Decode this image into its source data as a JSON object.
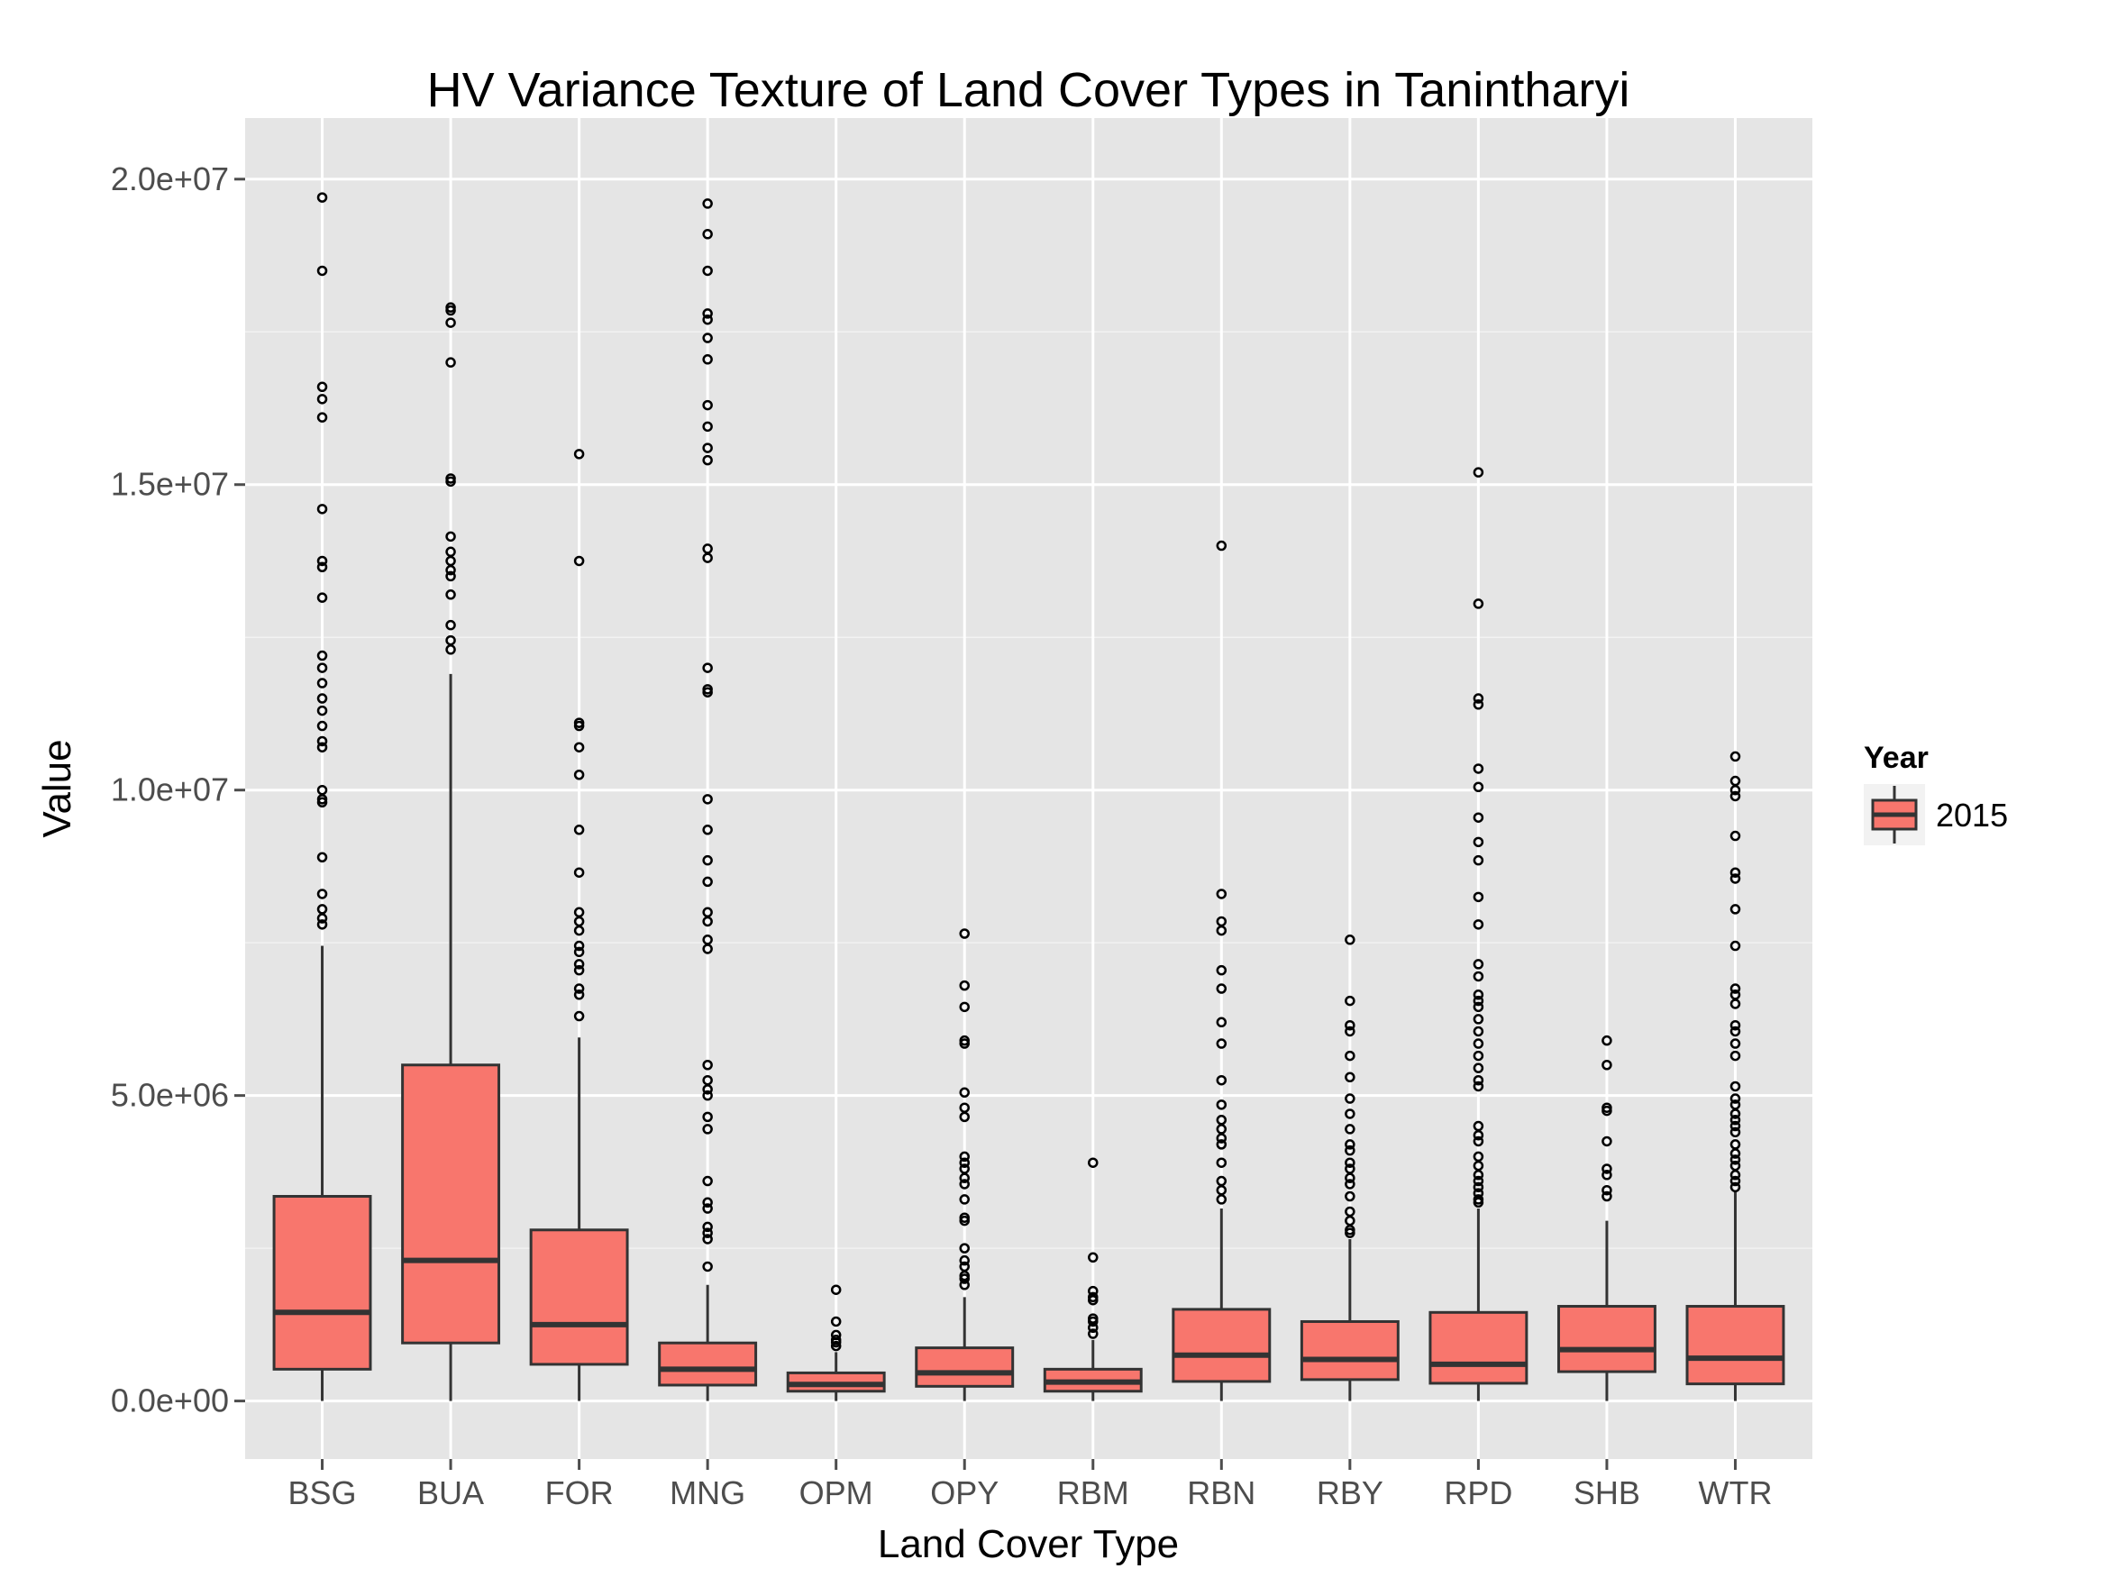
{
  "chart_data": {
    "type": "box",
    "title": "HV Variance Texture of Land Cover Types in Tanintharyi",
    "xlabel": "Land Cover Type",
    "ylabel": "Value",
    "ylim": [
      -950000,
      21000000
    ],
    "yticks": [
      0,
      5000000,
      10000000,
      15000000,
      20000000
    ],
    "ytick_labels": [
      "0.0e+00",
      "5.0e+06",
      "1.0e+07",
      "1.5e+07",
      "2.0e+07"
    ],
    "grid": true,
    "legend": {
      "title": "Year",
      "position": "right",
      "entries": [
        "2015"
      ]
    },
    "colors": {
      "fill": "#F8766D",
      "panel": "#E5E5E5",
      "grid": "#FFFFFF",
      "stroke": "#333333"
    },
    "categories": [
      "BSG",
      "BUA",
      "FOR",
      "MNG",
      "OPM",
      "OPY",
      "RBM",
      "RBN",
      "RBY",
      "RPD",
      "SHB",
      "WTR"
    ],
    "series": [
      {
        "name": "2015",
        "boxes": [
          {
            "min": 0,
            "q1": 520000,
            "median": 1450000,
            "q3": 3350000,
            "max": 7450000,
            "outliers": [
              19700000,
              18500000,
              16600000,
              16400000,
              16100000,
              14600000,
              13750000,
              13650000,
              13150000,
              12200000,
              12000000,
              11750000,
              11500000,
              11300000,
              11050000,
              10800000,
              10700000,
              10000000,
              9850000,
              9800000,
              8900000,
              8300000,
              8050000,
              7900000,
              7800000
            ]
          },
          {
            "min": 0,
            "q1": 950000,
            "median": 2300000,
            "q3": 5500000,
            "max": 11900000,
            "outliers": [
              17900000,
              17850000,
              17650000,
              17000000,
              15100000,
              15050000,
              14150000,
              13900000,
              13750000,
              13600000,
              13500000,
              13200000,
              12700000,
              12450000,
              12300000
            ]
          },
          {
            "min": 0,
            "q1": 600000,
            "median": 1250000,
            "q3": 2800000,
            "max": 5950000,
            "outliers": [
              15500000,
              13750000,
              11100000,
              11050000,
              10700000,
              10250000,
              9350000,
              8650000,
              8000000,
              7850000,
              7700000,
              7450000,
              7350000,
              7150000,
              7050000,
              6750000,
              6650000,
              6300000
            ]
          },
          {
            "min": 0,
            "q1": 260000,
            "median": 520000,
            "q3": 950000,
            "max": 1900000,
            "outliers": [
              19600000,
              19100000,
              18500000,
              17800000,
              17700000,
              17400000,
              17050000,
              16300000,
              15950000,
              15600000,
              15400000,
              13950000,
              13800000,
              12000000,
              11650000,
              11600000,
              9850000,
              9350000,
              8850000,
              8500000,
              8000000,
              7850000,
              7550000,
              7400000,
              5500000,
              5250000,
              5100000,
              5000000,
              4650000,
              4450000,
              3600000,
              3250000,
              3150000,
              2850000,
              2750000,
              2650000,
              2200000
            ]
          },
          {
            "min": 0,
            "q1": 160000,
            "median": 270000,
            "q3": 460000,
            "max": 800000,
            "outliers": [
              1820000,
              1300000,
              1080000,
              1000000,
              960000,
              900000
            ]
          },
          {
            "min": 0,
            "q1": 240000,
            "median": 460000,
            "q3": 870000,
            "max": 1700000,
            "outliers": [
              7650000,
              6800000,
              6450000,
              5900000,
              5850000,
              5050000,
              4800000,
              4650000,
              4000000,
              3900000,
              3800000,
              3650000,
              3550000,
              3300000,
              3000000,
              2950000,
              2500000,
              2300000,
              2200000,
              2050000,
              2000000,
              1900000
            ]
          },
          {
            "min": 0,
            "q1": 160000,
            "median": 310000,
            "q3": 520000,
            "max": 1000000,
            "outliers": [
              3900000,
              2350000,
              1800000,
              1700000,
              1650000,
              1350000,
              1300000,
              1200000,
              1100000
            ]
          },
          {
            "min": 0,
            "q1": 320000,
            "median": 750000,
            "q3": 1500000,
            "max": 3150000,
            "outliers": [
              14000000,
              8300000,
              7850000,
              7700000,
              7050000,
              6750000,
              6200000,
              5850000,
              5250000,
              4850000,
              4600000,
              4450000,
              4300000,
              4200000,
              3900000,
              3600000,
              3450000,
              3300000
            ]
          },
          {
            "min": 0,
            "q1": 350000,
            "median": 680000,
            "q3": 1300000,
            "max": 2650000,
            "outliers": [
              7550000,
              6550000,
              6150000,
              6050000,
              5650000,
              5300000,
              4950000,
              4700000,
              4450000,
              4200000,
              4100000,
              3900000,
              3800000,
              3650000,
              3550000,
              3350000,
              3100000,
              2950000,
              2800000,
              2750000
            ]
          },
          {
            "min": 0,
            "q1": 290000,
            "median": 600000,
            "q3": 1450000,
            "max": 3150000,
            "outliers": [
              15200000,
              13050000,
              11500000,
              11400000,
              10350000,
              10050000,
              9550000,
              9150000,
              8850000,
              8250000,
              7800000,
              7150000,
              6950000,
              6650000,
              6550000,
              6450000,
              6250000,
              6050000,
              5850000,
              5650000,
              5450000,
              5250000,
              5150000,
              4500000,
              4350000,
              4250000,
              4000000,
              3850000,
              3700000,
              3600000,
              3500000,
              3400000,
              3300000,
              3250000
            ]
          },
          {
            "min": 0,
            "q1": 480000,
            "median": 840000,
            "q3": 1550000,
            "max": 2950000,
            "outliers": [
              5900000,
              5500000,
              4800000,
              4750000,
              4250000,
              3800000,
              3700000,
              3450000,
              3350000
            ]
          },
          {
            "min": 0,
            "q1": 280000,
            "median": 700000,
            "q3": 1550000,
            "max": 3450000,
            "outliers": [
              10550000,
              10150000,
              10000000,
              9900000,
              9250000,
              8650000,
              8550000,
              8050000,
              7450000,
              6750000,
              6650000,
              6500000,
              6150000,
              6050000,
              5850000,
              5650000,
              5150000,
              4950000,
              4850000,
              4700000,
              4600000,
              4500000,
              4400000,
              4200000,
              4050000,
              3950000,
              3850000,
              3700000,
              3600000,
              3500000
            ]
          }
        ]
      }
    ]
  }
}
